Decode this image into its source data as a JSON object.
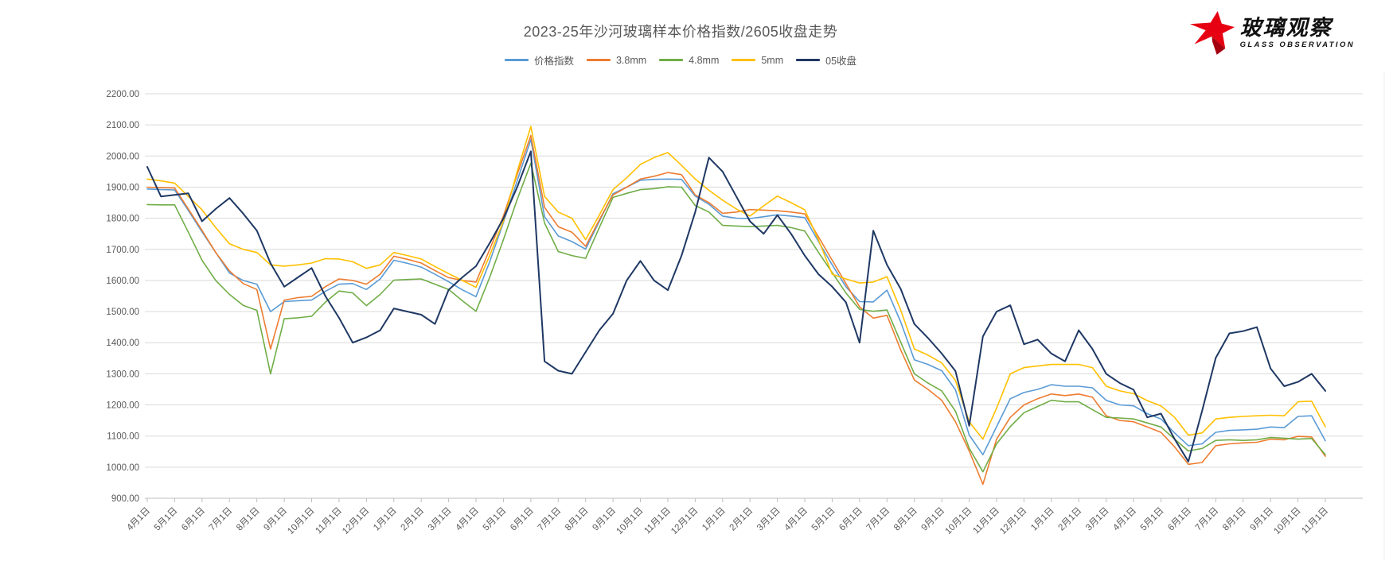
{
  "title": "2023-25年沙河玻璃样本价格指数/2605收盘走势",
  "logo": {
    "name": "玻璃观察",
    "subtitle": "GLASS OBSERVATION",
    "accent_color": "#E60012"
  },
  "legend": [
    "价格指数",
    "3.8mm",
    "4.8mm",
    "5mm",
    "05收盘"
  ],
  "chart_data": {
    "type": "line",
    "title": "2023-25年沙河玻璃样本价格指数/2605收盘走势",
    "xlabel": "",
    "ylabel": "",
    "grid": true,
    "legend_position": "top",
    "y_axis": {
      "min": 900,
      "max": 2200,
      "step": 100,
      "tick_format": "0.00"
    },
    "x_tick_labels": [
      "4月1日",
      "5月1日",
      "6月1日",
      "7月1日",
      "8月1日",
      "9月1日",
      "10月1日",
      "11月1日",
      "12月1日",
      "1月1日",
      "2月1日",
      "3月1日",
      "4月1日",
      "5月1日",
      "6月1日",
      "7月1日",
      "8月1日",
      "9月1日",
      "10月1日",
      "11月1日",
      "12月1日",
      "1月1日",
      "2月1日",
      "3月1日",
      "4月1日",
      "5月1日",
      "6月1日",
      "7月1日",
      "8月1日",
      "9月1日",
      "10月1日",
      "11月1日",
      "12月1日",
      "1月1日",
      "2月1日",
      "3月1日",
      "4月1日",
      "5月1日",
      "6月1日",
      "7月1日",
      "8月1日",
      "9月1日",
      "10月1日",
      "11月1日"
    ],
    "samples_per_label_interval": 2,
    "series": [
      {
        "name": "价格指数",
        "color": "#5B9BD5",
        "width": 1.6,
        "values": [
          1894,
          1892,
          1891,
          1825,
          1756,
          1690,
          1624,
          1600,
          1588,
          1500,
          1532,
          1535,
          1537,
          1565,
          1588,
          1590,
          1571,
          1605,
          1665,
          1655,
          1643,
          1620,
          1596,
          1570,
          1548,
          1660,
          1786,
          1920,
          2053,
          1805,
          1743,
          1725,
          1701,
          1790,
          1879,
          1900,
          1922,
          1925,
          1926,
          1925,
          1871,
          1845,
          1807,
          1800,
          1799,
          1805,
          1811,
          1807,
          1802,
          1725,
          1650,
          1580,
          1532,
          1531,
          1569,
          1467,
          1345,
          1330,
          1310,
          1249,
          1103,
          1040,
          1130,
          1220,
          1240,
          1250,
          1265,
          1260,
          1260,
          1255,
          1215,
          1200,
          1197,
          1172,
          1155,
          1110,
          1069,
          1075,
          1112,
          1118,
          1120,
          1122,
          1129,
          1127,
          1163,
          1165,
          1085
        ]
      },
      {
        "name": "3.8mm",
        "color": "#ED7D31",
        "width": 1.6,
        "values": [
          1900,
          1898,
          1897,
          1830,
          1761,
          1690,
          1631,
          1590,
          1571,
          1380,
          1537,
          1545,
          1549,
          1580,
          1605,
          1600,
          1588,
          1620,
          1678,
          1668,
          1656,
          1632,
          1609,
          1600,
          1595,
          1700,
          1807,
          1940,
          2066,
          1835,
          1773,
          1755,
          1710,
          1795,
          1875,
          1900,
          1926,
          1935,
          1947,
          1940,
          1875,
          1850,
          1816,
          1820,
          1828,
          1826,
          1824,
          1820,
          1814,
          1740,
          1665,
          1590,
          1515,
          1479,
          1488,
          1377,
          1280,
          1250,
          1215,
          1146,
          1052,
          945,
          1090,
          1160,
          1200,
          1220,
          1235,
          1230,
          1235,
          1225,
          1165,
          1150,
          1146,
          1129,
          1112,
          1065,
          1009,
          1015,
          1069,
          1075,
          1078,
          1080,
          1090,
          1088,
          1099,
          1097,
          1035
        ]
      },
      {
        "name": "4.8mm",
        "color": "#70AD47",
        "width": 1.6,
        "values": [
          1844,
          1843,
          1843,
          1755,
          1665,
          1600,
          1555,
          1520,
          1504,
          1300,
          1477,
          1480,
          1485,
          1530,
          1566,
          1560,
          1519,
          1555,
          1601,
          1603,
          1605,
          1588,
          1571,
          1535,
          1501,
          1610,
          1731,
          1860,
          1977,
          1785,
          1693,
          1680,
          1671,
          1770,
          1867,
          1880,
          1892,
          1895,
          1901,
          1900,
          1841,
          1820,
          1777,
          1775,
          1773,
          1775,
          1777,
          1770,
          1759,
          1690,
          1625,
          1560,
          1507,
          1501,
          1505,
          1402,
          1300,
          1270,
          1245,
          1180,
          1061,
          985,
          1075,
          1130,
          1175,
          1195,
          1215,
          1210,
          1210,
          1185,
          1160,
          1158,
          1155,
          1142,
          1129,
          1090,
          1052,
          1060,
          1086,
          1088,
          1086,
          1088,
          1095,
          1093,
          1090,
          1092,
          1040
        ]
      },
      {
        "name": "5mm",
        "color": "#FFC000",
        "width": 1.6,
        "values": [
          1926,
          1920,
          1913,
          1870,
          1827,
          1770,
          1718,
          1700,
          1690,
          1650,
          1646,
          1650,
          1656,
          1670,
          1669,
          1660,
          1639,
          1650,
          1690,
          1680,
          1669,
          1645,
          1622,
          1600,
          1578,
          1680,
          1790,
          1950,
          2095,
          1870,
          1820,
          1800,
          1731,
          1810,
          1892,
          1930,
          1973,
          1995,
          2011,
          1970,
          1926,
          1890,
          1858,
          1830,
          1807,
          1840,
          1871,
          1850,
          1827,
          1730,
          1620,
          1605,
          1592,
          1595,
          1612,
          1505,
          1380,
          1360,
          1335,
          1279,
          1146,
          1090,
          1190,
          1300,
          1320,
          1325,
          1330,
          1330,
          1330,
          1320,
          1260,
          1245,
          1236,
          1214,
          1197,
          1160,
          1103,
          1110,
          1155,
          1160,
          1163,
          1165,
          1167,
          1165,
          1210,
          1212,
          1130
        ]
      },
      {
        "name": "05收盘",
        "color": "#1F3864",
        "width": 2.0,
        "values": [
          1965,
          1870,
          1875,
          1880,
          1790,
          1830,
          1865,
          1815,
          1760,
          1655,
          1580,
          1610,
          1640,
          1550,
          1480,
          1400,
          1417,
          1440,
          1510,
          1500,
          1490,
          1460,
          1570,
          1610,
          1646,
          1720,
          1799,
          1900,
          2015,
          1340,
          1310,
          1300,
          1370,
          1440,
          1493,
          1600,
          1663,
          1600,
          1569,
          1680,
          1820,
          1995,
          1950,
          1870,
          1790,
          1750,
          1810,
          1750,
          1680,
          1620,
          1580,
          1530,
          1400,
          1760,
          1650,
          1573,
          1460,
          1415,
          1365,
          1309,
          1133,
          1420,
          1500,
          1520,
          1395,
          1410,
          1365,
          1340,
          1440,
          1380,
          1300,
          1270,
          1249,
          1160,
          1172,
          1090,
          1018,
          1180,
          1351,
          1430,
          1437,
          1450,
          1317,
          1260,
          1274,
          1300,
          1245
        ]
      }
    ],
    "colors": {
      "grid": "#D9D9D9",
      "axis": "#BFBFBF",
      "tick_text": "#595959"
    }
  }
}
